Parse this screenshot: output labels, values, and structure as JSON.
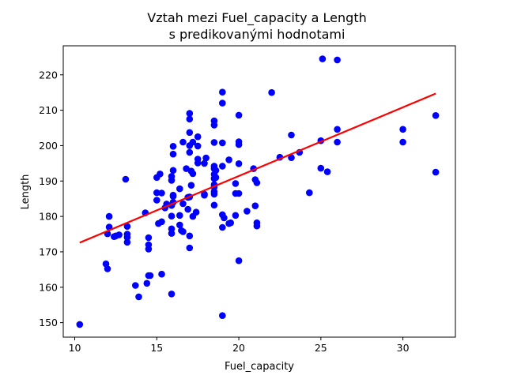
{
  "chart_data": {
    "type": "scatter",
    "title": "Vztah mezi Fuel_capacity a Length",
    "subtitle": "s predikovanými hodnotami",
    "xlabel": "Fuel_capacity",
    "ylabel": "Length",
    "xlim": [
      9.3,
      33.2
    ],
    "ylim": [
      145.9,
      228.2
    ],
    "xticks": [
      10,
      15,
      20,
      25,
      30
    ],
    "yticks": [
      150,
      160,
      170,
      180,
      190,
      200,
      210,
      220
    ],
    "grid": false,
    "colors": {
      "points": "#0000ff",
      "line": "#ff0000"
    },
    "series": [
      {
        "type": "scatter",
        "points": [
          [
            10.3,
            149.5
          ],
          [
            11.9,
            166.6
          ],
          [
            12.0,
            165.2
          ],
          [
            12.0,
            175.1
          ],
          [
            12.1,
            177.0
          ],
          [
            12.1,
            180.0
          ],
          [
            12.4,
            174.3
          ],
          [
            12.5,
            174.5
          ],
          [
            12.7,
            174.8
          ],
          [
            13.1,
            190.5
          ],
          [
            13.2,
            177.2
          ],
          [
            13.2,
            175.0
          ],
          [
            13.2,
            174.1
          ],
          [
            13.2,
            172.7
          ],
          [
            13.7,
            160.5
          ],
          [
            13.9,
            157.3
          ],
          [
            14.3,
            181.0
          ],
          [
            14.4,
            161.1
          ],
          [
            14.5,
            163.3
          ],
          [
            14.5,
            174.0
          ],
          [
            14.5,
            172.0
          ],
          [
            14.5,
            170.8
          ],
          [
            14.6,
            163.3
          ],
          [
            15.0,
            186.7
          ],
          [
            15.0,
            184.6
          ],
          [
            15.0,
            191.0
          ],
          [
            15.1,
            178.0
          ],
          [
            15.2,
            192.0
          ],
          [
            15.3,
            186.6
          ],
          [
            15.3,
            178.5
          ],
          [
            15.3,
            163.7
          ],
          [
            15.5,
            182.4
          ],
          [
            15.6,
            183.5
          ],
          [
            15.9,
            176.5
          ],
          [
            15.9,
            175.2
          ],
          [
            15.9,
            158.1
          ],
          [
            15.9,
            180.1
          ],
          [
            15.9,
            183.1
          ],
          [
            15.9,
            191.3
          ],
          [
            15.9,
            190.2
          ],
          [
            16.0,
            185.7
          ],
          [
            16.0,
            186.0
          ],
          [
            16.0,
            199.8
          ],
          [
            16.0,
            197.6
          ],
          [
            16.0,
            193.0
          ],
          [
            16.0,
            184.0
          ],
          [
            16.4,
            187.8
          ],
          [
            16.4,
            177.6
          ],
          [
            16.4,
            180.3
          ],
          [
            16.5,
            176.0
          ],
          [
            16.6,
            201.0
          ],
          [
            16.6,
            175.7
          ],
          [
            16.6,
            183.6
          ],
          [
            16.8,
            193.5
          ],
          [
            16.9,
            182.0
          ],
          [
            16.9,
            185.4
          ],
          [
            17.0,
            171.1
          ],
          [
            17.0,
            174.5
          ],
          [
            17.0,
            185.5
          ],
          [
            17.0,
            209.1
          ],
          [
            17.0,
            207.5
          ],
          [
            17.0,
            203.7
          ],
          [
            17.0,
            200.0
          ],
          [
            17.0,
            198.1
          ],
          [
            17.1,
            188.8
          ],
          [
            17.1,
            192.8
          ],
          [
            17.2,
            192.1
          ],
          [
            17.2,
            180.0
          ],
          [
            17.2,
            201.0
          ],
          [
            17.4,
            181.2
          ],
          [
            17.5,
            202.5
          ],
          [
            17.5,
            199.9
          ],
          [
            17.5,
            196.2
          ],
          [
            17.5,
            195.1
          ],
          [
            17.9,
            186.3
          ],
          [
            17.9,
            186.0
          ],
          [
            17.9,
            195.0
          ],
          [
            18.0,
            196.5
          ],
          [
            18.5,
            200.9
          ],
          [
            18.5,
            207.0
          ],
          [
            18.5,
            205.8
          ],
          [
            18.5,
            194.2
          ],
          [
            18.5,
            193.5
          ],
          [
            18.5,
            191.9
          ],
          [
            18.5,
            190.7
          ],
          [
            18.5,
            189.0
          ],
          [
            18.5,
            188.3
          ],
          [
            18.5,
            186.3
          ],
          [
            18.5,
            183.2
          ],
          [
            18.5,
            187.0
          ],
          [
            18.6,
            191.0
          ],
          [
            18.6,
            193.0
          ],
          [
            19.0,
            215.1
          ],
          [
            19.0,
            212.0
          ],
          [
            19.0,
            200.8
          ],
          [
            19.0,
            194.2
          ],
          [
            19.0,
            180.5
          ],
          [
            19.0,
            176.9
          ],
          [
            19.0,
            152.0
          ],
          [
            19.1,
            179.6
          ],
          [
            19.4,
            196.0
          ],
          [
            19.4,
            178.0
          ],
          [
            19.5,
            178.2
          ],
          [
            19.8,
            180.3
          ],
          [
            19.8,
            189.3
          ],
          [
            19.8,
            186.5
          ],
          [
            20.0,
            208.6
          ],
          [
            20.0,
            201.1
          ],
          [
            20.0,
            200.3
          ],
          [
            20.0,
            194.9
          ],
          [
            20.0,
            186.5
          ],
          [
            20.0,
            167.5
          ],
          [
            20.5,
            181.5
          ],
          [
            20.9,
            193.5
          ],
          [
            21.0,
            183.0
          ],
          [
            21.0,
            190.4
          ],
          [
            21.1,
            189.5
          ],
          [
            21.1,
            178.2
          ],
          [
            21.1,
            177.3
          ],
          [
            22.0,
            215.0
          ],
          [
            22.5,
            196.7
          ],
          [
            23.2,
            203.0
          ],
          [
            23.2,
            196.6
          ],
          [
            23.7,
            198.1
          ],
          [
            24.3,
            186.7
          ],
          [
            25.0,
            201.4
          ],
          [
            25.0,
            193.6
          ],
          [
            25.1,
            224.5
          ],
          [
            25.4,
            192.6
          ],
          [
            26.0,
            224.2
          ],
          [
            26.0,
            204.6
          ],
          [
            26.0,
            201.0
          ],
          [
            30.0,
            204.6
          ],
          [
            30.0,
            201.0
          ],
          [
            32.0,
            208.5
          ],
          [
            32.0,
            192.5
          ]
        ]
      },
      {
        "type": "line",
        "points": [
          [
            10.3,
            172.6
          ],
          [
            32.0,
            214.7
          ]
        ]
      }
    ]
  }
}
